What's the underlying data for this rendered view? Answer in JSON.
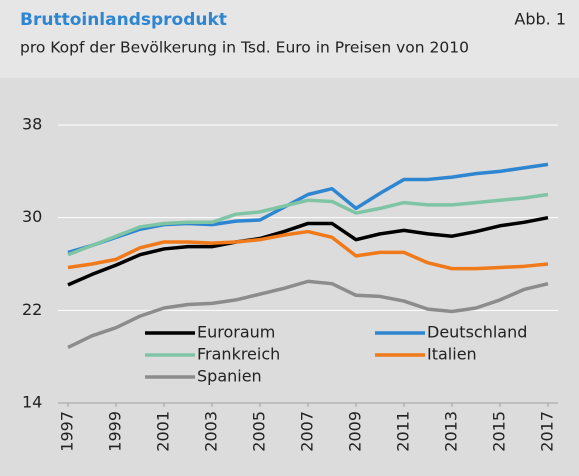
{
  "chart_data": {
    "type": "line",
    "title": "Bruttoinlandsprodukt",
    "figure_label": "Abb. 1",
    "subtitle": "pro Kopf der Bevölkerung in Tsd. Euro in Preisen von 2010",
    "x": [
      1997,
      1998,
      1999,
      2000,
      2001,
      2002,
      2003,
      2004,
      2005,
      2006,
      2007,
      2008,
      2009,
      2010,
      2011,
      2012,
      2013,
      2014,
      2015,
      2016,
      2017
    ],
    "xlim": [
      1997,
      2017
    ],
    "xticks": [
      1997,
      1999,
      2001,
      2003,
      2005,
      2007,
      2009,
      2011,
      2013,
      2015,
      2017
    ],
    "ylim": [
      14,
      38
    ],
    "yticks": [
      14,
      22,
      30,
      38
    ],
    "grid": true,
    "legend": "bottom",
    "series": [
      {
        "name": "Euroraum",
        "color": "#000000",
        "values": [
          24.2,
          25.1,
          25.9,
          26.8,
          27.3,
          27.5,
          27.5,
          27.9,
          28.2,
          28.8,
          29.5,
          29.5,
          28.1,
          28.6,
          28.9,
          28.6,
          28.4,
          28.8,
          29.3,
          29.6,
          30.0
        ]
      },
      {
        "name": "Deutschland",
        "color": "#2e86d1",
        "values": [
          27.0,
          27.6,
          28.3,
          29.0,
          29.4,
          29.5,
          29.4,
          29.7,
          29.8,
          30.9,
          32.0,
          32.5,
          30.8,
          32.1,
          33.3,
          33.3,
          33.5,
          33.8,
          34.0,
          34.3,
          34.6
        ]
      },
      {
        "name": "Frankreich",
        "color": "#7fc4a4",
        "values": [
          26.8,
          27.6,
          28.4,
          29.2,
          29.5,
          29.6,
          29.6,
          30.3,
          30.5,
          31.0,
          31.5,
          31.4,
          30.4,
          30.8,
          31.3,
          31.1,
          31.1,
          31.3,
          31.5,
          31.7,
          32.0
        ]
      },
      {
        "name": "Italien",
        "color": "#f07a1a",
        "values": [
          25.7,
          26.0,
          26.4,
          27.4,
          27.9,
          27.9,
          27.8,
          27.9,
          28.1,
          28.5,
          28.8,
          28.3,
          26.7,
          27.0,
          27.0,
          26.1,
          25.6,
          25.6,
          25.7,
          25.8,
          26.0
        ]
      },
      {
        "name": "Spanien",
        "color": "#8c8c8c",
        "values": [
          18.8,
          19.8,
          20.5,
          21.5,
          22.2,
          22.5,
          22.6,
          22.9,
          23.4,
          23.9,
          24.5,
          24.3,
          23.3,
          23.2,
          22.8,
          22.1,
          21.9,
          22.2,
          22.9,
          23.8,
          24.3
        ]
      }
    ]
  }
}
